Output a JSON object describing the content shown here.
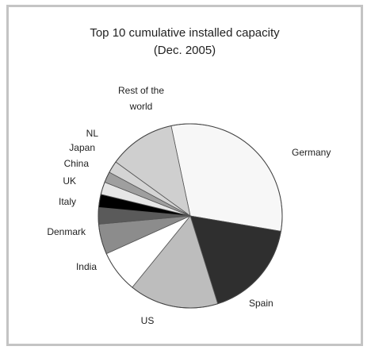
{
  "chart_data": {
    "type": "pie",
    "title": "Top 10 cumulative installed capacity",
    "subtitle": "(Dec. 2005)",
    "labels": [
      "Germany",
      "Spain",
      "US",
      "India",
      "Denmark",
      "Italy",
      "UK",
      "China",
      "Japan",
      "NL",
      "Rest of the world"
    ],
    "values": [
      31.0,
      17.5,
      15.7,
      7.4,
      5.3,
      2.9,
      2.3,
      2.2,
      1.9,
      2.1,
      11.7
    ],
    "colors": [
      "#f7f7f7",
      "#2f2f2f",
      "#bdbdbd",
      "#ffffff",
      "#8c8c8c",
      "#5a5a5a",
      "#000000",
      "#e6e6e6",
      "#9f9f9f",
      "#d4d4d4",
      "#cfcfcf"
    ],
    "legend": "none"
  }
}
